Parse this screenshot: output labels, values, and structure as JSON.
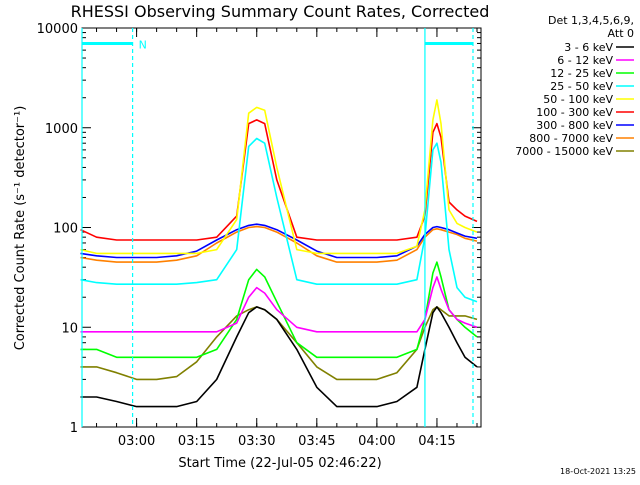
{
  "chart_data": {
    "type": "line",
    "title": "RHESSI Observing Summary Count Rates, Corrected",
    "xlabel": "Start Time (22-Jul-05 02:46:22)",
    "ylabel": "Corrected Count Rate (s⁻¹ detector⁻¹)",
    "x_unit": "time of day (hh:mm, 22-Jul-05)",
    "xlim": [
      "02:46:22",
      "04:26:00"
    ],
    "ylim": [
      1,
      10000
    ],
    "y_scale": "log",
    "x_ticks": [
      "03:00",
      "03:15",
      "03:30",
      "03:45",
      "04:00",
      "04:15"
    ],
    "y_ticks": [
      1,
      10,
      100,
      1000,
      10000
    ],
    "y_tick_labels": [
      "1",
      "10",
      "100",
      "1000",
      "10000"
    ],
    "grid": false,
    "legend_position": "right",
    "legend_header": [
      "Det 1,3,4,5,6,9,",
      "Att 0"
    ],
    "annotations": [
      {
        "text": "N",
        "x": "02:59:00",
        "y": 7000
      }
    ],
    "vertical_markers": [
      {
        "x": "02:46:22",
        "style": "solid",
        "color": "#00ffff"
      },
      {
        "x": "02:59:00",
        "style": "dashed",
        "color": "#00ffff"
      },
      {
        "x": "04:12:00",
        "style": "solid",
        "color": "#00ffff"
      },
      {
        "x": "04:24:00",
        "style": "dashed",
        "color": "#00ffff"
      }
    ],
    "horizontal_segments": [
      {
        "x0": "02:46:22",
        "x1": "02:59:00",
        "y": 7000,
        "color": "#00ffff"
      },
      {
        "x0": "04:12:00",
        "x1": "04:24:00",
        "y": 7000,
        "color": "#00ffff"
      }
    ],
    "x": [
      "02:46",
      "02:50",
      "02:55",
      "03:00",
      "03:05",
      "03:10",
      "03:15",
      "03:20",
      "03:25",
      "03:28",
      "03:30",
      "03:32",
      "03:35",
      "03:40",
      "03:45",
      "03:50",
      "03:55",
      "04:00",
      "04:05",
      "04:10",
      "04:12",
      "04:14",
      "04:15",
      "04:16",
      "04:18",
      "04:20",
      "04:22",
      "04:25"
    ],
    "series": [
      {
        "name": "3 - 6 keV",
        "color": "#000000",
        "values": [
          2,
          2,
          1.8,
          1.6,
          1.6,
          1.6,
          1.8,
          3,
          8,
          14,
          16,
          15,
          12,
          6,
          2.5,
          1.6,
          1.6,
          1.6,
          1.8,
          2.5,
          6,
          14,
          16,
          14,
          10,
          7,
          5,
          4
        ]
      },
      {
        "name": "6 - 12 keV",
        "color": "#ff00ff",
        "values": [
          9,
          9,
          9,
          9,
          9,
          9,
          9,
          9,
          11,
          20,
          25,
          22,
          15,
          10,
          9,
          9,
          9,
          9,
          9,
          9,
          12,
          25,
          32,
          24,
          15,
          12,
          11,
          10
        ]
      },
      {
        "name": "12 - 25 keV",
        "color": "#00ff00",
        "values": [
          6,
          6,
          5,
          5,
          5,
          5,
          5,
          6,
          12,
          30,
          38,
          32,
          18,
          7,
          5,
          5,
          5,
          5,
          5,
          6,
          12,
          35,
          45,
          32,
          15,
          12,
          10,
          8
        ]
      },
      {
        "name": "25 - 50 keV",
        "color": "#00ffff",
        "values": [
          30,
          28,
          27,
          27,
          27,
          27,
          28,
          30,
          60,
          650,
          780,
          700,
          200,
          30,
          27,
          27,
          27,
          27,
          27,
          30,
          80,
          600,
          700,
          450,
          60,
          25,
          20,
          18
        ]
      },
      {
        "name": "50 - 100 keV",
        "color": "#ffff00",
        "values": [
          60,
          55,
          55,
          55,
          55,
          55,
          55,
          60,
          120,
          1400,
          1600,
          1500,
          400,
          60,
          55,
          55,
          55,
          55,
          55,
          65,
          150,
          1200,
          1900,
          1100,
          150,
          110,
          100,
          90
        ]
      },
      {
        "name": "100 - 300 keV",
        "color": "#ff0000",
        "values": [
          95,
          80,
          75,
          75,
          75,
          75,
          75,
          80,
          130,
          1100,
          1200,
          1100,
          300,
          80,
          75,
          75,
          75,
          75,
          75,
          80,
          130,
          900,
          1100,
          800,
          180,
          150,
          130,
          115
        ]
      },
      {
        "name": "300 - 800 keV",
        "color": "#0000ff",
        "values": [
          55,
          52,
          50,
          50,
          50,
          52,
          58,
          75,
          95,
          105,
          108,
          105,
          95,
          75,
          58,
          50,
          50,
          50,
          52,
          65,
          85,
          100,
          102,
          100,
          95,
          88,
          82,
          78
        ]
      },
      {
        "name": "800 - 7000 keV",
        "color": "#ff8000",
        "values": [
          50,
          47,
          45,
          45,
          45,
          47,
          52,
          70,
          90,
          100,
          102,
          100,
          90,
          70,
          52,
          45,
          45,
          45,
          47,
          60,
          80,
          95,
          97,
          95,
          90,
          85,
          78,
          73
        ]
      },
      {
        "name": "7000 - 15000 keV",
        "color": "#808000",
        "values": [
          4,
          4,
          3.5,
          3,
          3,
          3.2,
          4.5,
          8,
          13,
          15,
          16,
          15,
          12,
          7,
          4,
          3,
          3,
          3,
          3.5,
          6,
          10,
          15,
          16,
          15,
          13,
          13,
          13,
          12
        ]
      }
    ]
  },
  "footer": {
    "date_stamp": "18-Oct-2021 13:25"
  }
}
